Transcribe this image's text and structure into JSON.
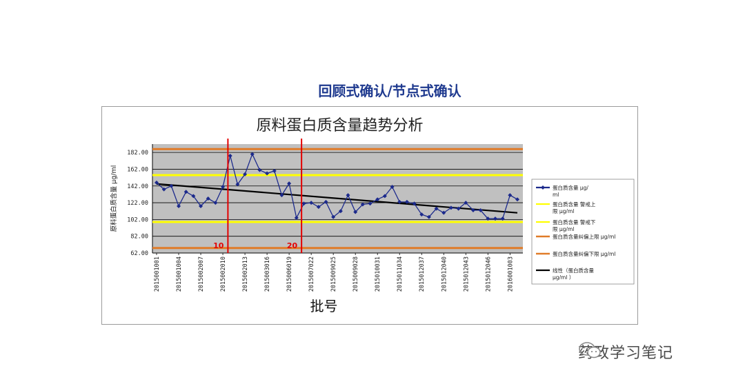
{
  "page_title": "回顾式确认/节点式确认",
  "watermark": {
    "text": "药政学习笔记",
    "icon": "wechat-icon"
  },
  "chart_data": {
    "type": "line",
    "title": "原料蛋白质含量趋势分析",
    "xlabel": "批号",
    "ylabel": "原料蛋白质含量 μg/ml",
    "ylim": [
      62,
      192
    ],
    "yticks": [
      "62.00",
      "82.00",
      "102.00",
      "122.00",
      "142.00",
      "162.00",
      "182.00"
    ],
    "ytick_values": [
      62,
      82,
      102,
      122,
      142,
      162,
      182
    ],
    "grid": true,
    "legend_position": "right",
    "x_tick_labels": [
      "2015001001",
      "2015001004",
      "2015002007",
      "2015002010",
      "2015002013",
      "2015003016",
      "2015006019",
      "2015007022",
      "2015009025",
      "2015009028",
      "2015010031",
      "2015011034",
      "2015012037",
      "2015012040",
      "2015012043",
      "2015012046",
      "2016001003"
    ],
    "x_tick_positions": [
      1,
      4,
      7,
      10,
      13,
      16,
      19,
      22,
      25,
      28,
      31,
      34,
      37,
      40,
      43,
      46,
      49
    ],
    "series": [
      {
        "name": "蛋白质含量 μg/ml",
        "color": "#1c2a8c",
        "marker": "diamond",
        "values": [
          146,
          138,
          142,
          118,
          135,
          130,
          118,
          127,
          122,
          141,
          178,
          144,
          156,
          180,
          161,
          157,
          160,
          131,
          145,
          104,
          121,
          122,
          117,
          123,
          105,
          112,
          131,
          111,
          120,
          121,
          126,
          130,
          141,
          123,
          123,
          121,
          108,
          105,
          115,
          110,
          116,
          115,
          122,
          113,
          113,
          103,
          103,
          103,
          131,
          126
        ]
      },
      {
        "name": "蛋白质含量 警戒上限 μg/ml",
        "color": "#ffff00",
        "constant": 155
      },
      {
        "name": "蛋白质含量 警戒下限 μg/ml",
        "color": "#ffff00",
        "constant": 99
      },
      {
        "name": "蛋白质含量纠偏上限 μg/ml",
        "color": "#e07b28",
        "constant": 186
      },
      {
        "name": "蛋白质含量纠偏下限 μg/ml",
        "color": "#e07b28",
        "constant": 68
      },
      {
        "name": "线性（蛋白质含量 μg/ml ）",
        "color": "#000000",
        "trendline": {
          "x": [
            1,
            50
          ],
          "y": [
            144.5,
            110
          ]
        }
      }
    ],
    "annotations": [
      {
        "text": "10",
        "x": 11,
        "color": "#e30000"
      },
      {
        "text": "20",
        "x": 21,
        "color": "#e30000"
      }
    ]
  }
}
